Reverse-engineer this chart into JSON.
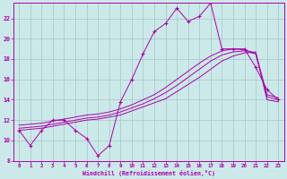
{
  "xlabel": "Windchill (Refroidissement éolien,°C)",
  "xlim": [
    -0.5,
    23.5
  ],
  "ylim": [
    8,
    23.5
  ],
  "yticks": [
    8,
    10,
    12,
    14,
    16,
    18,
    20,
    22
  ],
  "xticks": [
    0,
    1,
    2,
    3,
    4,
    5,
    6,
    7,
    8,
    9,
    10,
    11,
    12,
    13,
    14,
    15,
    16,
    17,
    18,
    19,
    20,
    21,
    22,
    23
  ],
  "background_color": "#cce9e9",
  "grid_color": "#aacccc",
  "line_color": "#aa00aa",
  "hours": [
    0,
    1,
    2,
    3,
    4,
    5,
    6,
    7,
    8,
    9,
    10,
    11,
    12,
    13,
    14,
    15,
    16,
    17,
    18,
    19,
    20,
    21,
    22,
    23
  ],
  "temp_curve": [
    11.0,
    9.5,
    11.0,
    12.0,
    12.0,
    11.0,
    10.2,
    8.5,
    9.5,
    13.8,
    16.0,
    18.5,
    20.7,
    21.5,
    23.0,
    21.7,
    22.2,
    23.5,
    19.0,
    19.0,
    19.0,
    17.2,
    15.0,
    14.0
  ],
  "line1": [
    11.0,
    11.1,
    11.2,
    11.4,
    11.6,
    11.8,
    12.0,
    12.1,
    12.3,
    12.5,
    12.9,
    13.3,
    13.7,
    14.1,
    14.8,
    15.5,
    16.2,
    17.0,
    17.8,
    18.3,
    18.6,
    18.7,
    14.0,
    13.8
  ],
  "line2": [
    11.2,
    11.3,
    11.4,
    11.6,
    11.8,
    12.0,
    12.2,
    12.3,
    12.5,
    12.8,
    13.2,
    13.6,
    14.1,
    14.7,
    15.4,
    16.2,
    17.0,
    17.8,
    18.4,
    18.7,
    18.8,
    18.5,
    14.3,
    14.0
  ],
  "line3": [
    11.5,
    11.6,
    11.7,
    11.9,
    12.1,
    12.3,
    12.5,
    12.6,
    12.8,
    13.1,
    13.5,
    14.0,
    14.5,
    15.2,
    16.0,
    16.8,
    17.6,
    18.3,
    18.8,
    19.0,
    18.9,
    18.6,
    14.5,
    14.2
  ]
}
